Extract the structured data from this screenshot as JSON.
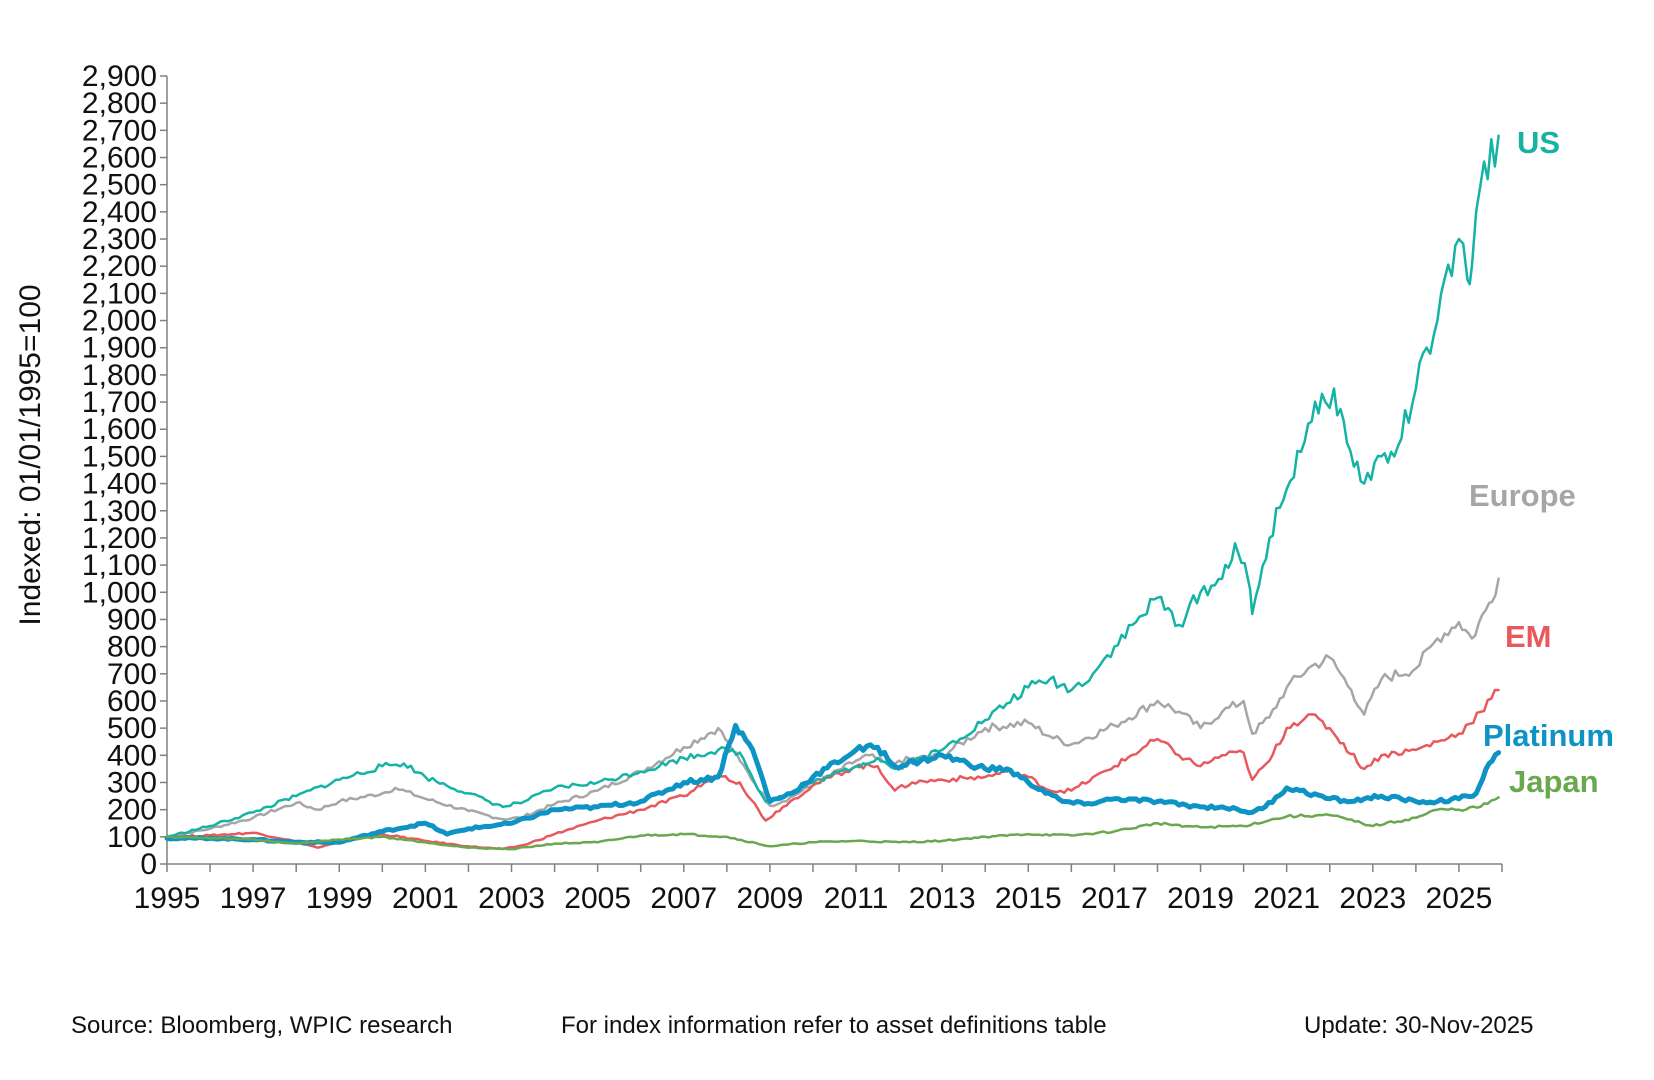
{
  "chart_data": {
    "type": "line",
    "ylabel": "Indexed:  01/01/1995=100",
    "ylim": [
      0,
      2900
    ],
    "y_ticks": [
      0,
      100,
      200,
      300,
      400,
      500,
      600,
      700,
      800,
      900,
      1000,
      1100,
      1200,
      1300,
      1400,
      1500,
      1600,
      1700,
      1800,
      1900,
      2000,
      2100,
      2200,
      2300,
      2400,
      2500,
      2600,
      2700,
      2800,
      2900
    ],
    "y_tick_labels": [
      "0",
      "100",
      "200",
      "300",
      "400",
      "500",
      "600",
      "700",
      "800",
      "900",
      "1,000",
      "1,100",
      "1,200",
      "1,300",
      "1,400",
      "1,500",
      "1,600",
      "1,700",
      "1,800",
      "1,900",
      "2,000",
      "2,100",
      "2,200",
      "2,300",
      "2,400",
      "2,500",
      "2,600",
      "2,700",
      "2,800",
      "2,900"
    ],
    "xlim": [
      1995,
      2026
    ],
    "x_ticks": [
      1995,
      1997,
      1999,
      2001,
      2003,
      2005,
      2007,
      2009,
      2011,
      2013,
      2015,
      2017,
      2019,
      2021,
      2023,
      2025
    ],
    "x_tick_labels": [
      "1995",
      "1997",
      "1999",
      "2001",
      "2003",
      "2005",
      "2007",
      "2009",
      "2011",
      "2013",
      "2015",
      "2017",
      "2019",
      "2021",
      "2023",
      "2025"
    ],
    "grid": false,
    "legend": "direct labels at right end of each line",
    "series": [
      {
        "name": "Europe",
        "color": "#a6a6a6",
        "width": 2.5,
        "x": [
          1995,
          1996,
          1997,
          1998,
          1998.5,
          1999,
          2000,
          2000.3,
          2001,
          2002,
          2002.8,
          2003.2,
          2004,
          2005,
          2006,
          2007,
          2007.8,
          2008.3,
          2009.0,
          2009.3,
          2010,
          2011,
          2011.3,
          2011.8,
          2012,
          2013,
          2014,
          2015,
          2015.5,
          2016,
          2017,
          2018,
          2018.5,
          2019,
          2019.5,
          2020.0,
          2020.2,
          2020.6,
          2021,
          2021.5,
          2022,
          2022.5,
          2022.8,
          2023.2,
          2024,
          2024.5,
          2025,
          2025.3,
          2025.7,
          2025.92
        ],
        "y": [
          100,
          130,
          170,
          225,
          200,
          230,
          260,
          280,
          240,
          195,
          165,
          170,
          220,
          270,
          340,
          430,
          500,
          380,
          215,
          230,
          290,
          380,
          400,
          360,
          380,
          400,
          500,
          520,
          470,
          440,
          510,
          600,
          560,
          500,
          560,
          600,
          480,
          540,
          650,
          720,
          760,
          640,
          550,
          680,
          720,
          830,
          890,
          830,
          960,
          1050
        ]
      },
      {
        "name": "EM",
        "color": "#e8595d",
        "width": 2.5,
        "x": [
          1995,
          1996,
          1997,
          1997.8,
          1998.5,
          1999,
          2000,
          2001,
          2002,
          2002.8,
          2003.3,
          2004,
          2005,
          2006,
          2007,
          2007.8,
          2008.3,
          2008.9,
          2009.3,
          2010,
          2011,
          2011.5,
          2011.9,
          2012.3,
          2013,
          2014,
          2014.5,
          2015,
          2015.5,
          2016,
          2017,
          2018,
          2018.5,
          2019,
          2019.5,
          2020.0,
          2020.2,
          2020.6,
          2021,
          2021.5,
          2022,
          2022.8,
          2023.2,
          2024,
          2024.5,
          2025,
          2025.5,
          2025.92
        ],
        "y": [
          100,
          105,
          115,
          90,
          60,
          80,
          110,
          85,
          65,
          55,
          70,
          110,
          160,
          200,
          250,
          330,
          300,
          160,
          210,
          290,
          360,
          360,
          270,
          300,
          310,
          320,
          340,
          320,
          270,
          270,
          360,
          460,
          400,
          360,
          400,
          410,
          310,
          380,
          500,
          550,
          500,
          350,
          400,
          420,
          450,
          480,
          560,
          640
        ]
      },
      {
        "name": "US",
        "color": "#14b3a5",
        "width": 2.5,
        "x": [
          1995,
          1996,
          1997,
          1998,
          1999,
          2000,
          2000.5,
          2001,
          2002,
          2002.8,
          2003.3,
          2004,
          2005,
          2006,
          2007,
          2007.8,
          2008.3,
          2008.9,
          2009.3,
          2010,
          2011,
          2011.5,
          2011.9,
          2012.5,
          2013,
          2014,
          2015,
          2015.5,
          2016,
          2016.5,
          2017,
          2018,
          2018.5,
          2019,
          2019.5,
          2019.8,
          2020.1,
          2020.2,
          2020.6,
          2021,
          2021.5,
          2021.9,
          2022.1,
          2022.4,
          2022.8,
          2023.2,
          2023.5,
          2024,
          2024.5,
          2025,
          2025.2,
          2025.3,
          2025.5,
          2025.92
        ],
        "y": [
          100,
          140,
          190,
          250,
          310,
          360,
          370,
          320,
          260,
          210,
          230,
          280,
          300,
          340,
          390,
          420,
          410,
          230,
          250,
          300,
          360,
          390,
          350,
          390,
          420,
          530,
          650,
          680,
          640,
          700,
          800,
          980,
          880,
          1000,
          1050,
          1180,
          1050,
          920,
          1200,
          1380,
          1620,
          1700,
          1750,
          1550,
          1400,
          1500,
          1500,
          1750,
          2000,
          2300,
          2150,
          2200,
          2500,
          2680
        ]
      },
      {
        "name": "Platinum",
        "color": "#0e93c5",
        "width": 5,
        "x": [
          1995,
          1996,
          1997,
          1998,
          1999,
          2000,
          2001,
          2001.5,
          2002,
          2003,
          2004,
          2005,
          2006,
          2007,
          2007.8,
          2008.2,
          2008.6,
          2009.0,
          2009.5,
          2010,
          2011,
          2011.5,
          2011.9,
          2012.5,
          2013,
          2014,
          2014.5,
          2015,
          2015.8,
          2016.3,
          2017,
          2018,
          2019,
          2019.5,
          2020.2,
          2020.5,
          2021,
          2021.3,
          2022,
          2022.5,
          2022.8,
          2023.2,
          2024,
          2024.5,
          2025,
          2025.4,
          2025.7,
          2025.92
        ],
        "y": [
          95,
          95,
          90,
          80,
          80,
          120,
          150,
          110,
          130,
          150,
          200,
          210,
          230,
          300,
          320,
          510,
          420,
          230,
          260,
          320,
          420,
          430,
          360,
          380,
          400,
          350,
          350,
          300,
          230,
          220,
          240,
          230,
          210,
          210,
          190,
          210,
          280,
          270,
          240,
          230,
          240,
          250,
          230,
          230,
          240,
          260,
          370,
          410
        ]
      },
      {
        "name": "Japan",
        "color": "#6aa84f",
        "width": 2.5,
        "x": [
          1995,
          1996,
          1997,
          1998,
          1999,
          2000,
          2001,
          2002,
          2003,
          2004,
          2005,
          2006,
          2007,
          2008,
          2009,
          2010,
          2011,
          2012,
          2013,
          2014,
          2015,
          2016,
          2017,
          2018,
          2019,
          2020,
          2021,
          2022,
          2023,
          2024,
          2024.5,
          2025,
          2025.5,
          2025.92
        ],
        "y": [
          100,
          95,
          90,
          75,
          90,
          100,
          80,
          60,
          55,
          75,
          80,
          105,
          110,
          100,
          65,
          80,
          85,
          80,
          85,
          100,
          110,
          105,
          120,
          150,
          135,
          140,
          175,
          180,
          140,
          170,
          200,
          200,
          210,
          245
        ]
      }
    ],
    "series_labels": {
      "US": "US",
      "Europe": "Europe",
      "EM": "EM",
      "Platinum": "Platinum",
      "Japan": "Japan"
    }
  },
  "footer": {
    "source": "Source: Bloomberg, WPIC research",
    "note": "For index information refer to asset definitions table",
    "update": "Update: 30-Nov-2025"
  }
}
